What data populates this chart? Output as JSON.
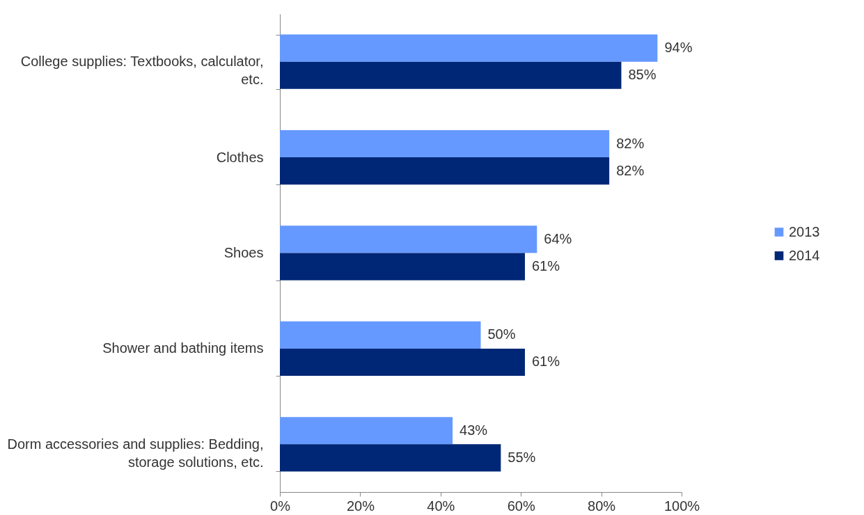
{
  "chart_data": {
    "type": "bar",
    "orientation": "horizontal",
    "categories": [
      "College supplies: Textbooks, calculator, etc.",
      "Clothes",
      "Shoes",
      "Shower and bathing items",
      "Dorm accessories and supplies: Bedding, storage solutions, etc."
    ],
    "series": [
      {
        "name": "2013",
        "color": "#6699ff",
        "values": [
          94,
          82,
          64,
          50,
          43
        ],
        "value_labels": [
          "94%",
          "82%",
          "64%",
          "50%",
          "43%"
        ]
      },
      {
        "name": "2014",
        "color": "#002776",
        "values": [
          85,
          82,
          61,
          61,
          55
        ],
        "value_labels": [
          "85%",
          "82%",
          "61%",
          "61%",
          "55%"
        ]
      }
    ],
    "xlim": [
      0,
      100
    ],
    "xticks": [
      {
        "value": 0,
        "label": "0%"
      },
      {
        "value": 20,
        "label": "20%"
      },
      {
        "value": 40,
        "label": "40%"
      },
      {
        "value": 60,
        "label": "60%"
      },
      {
        "value": 80,
        "label": "80%"
      },
      {
        "value": 100,
        "label": "100%"
      }
    ],
    "grid": false,
    "legend": "right"
  }
}
